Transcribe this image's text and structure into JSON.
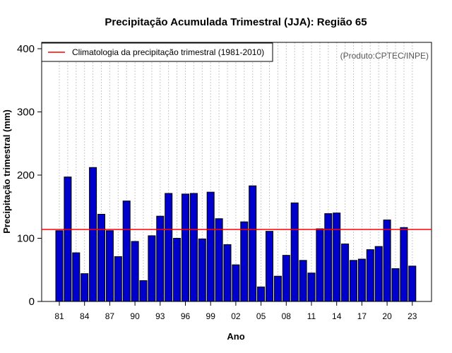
{
  "chart_data": {
    "type": "bar",
    "title": "Precipitação Acumulada Trimestral (JJA): Região 65",
    "xlabel": "Ano",
    "ylabel": "Precipitação trimestral (mm)",
    "ylim": [
      0,
      400
    ],
    "yticks": [
      0,
      100,
      200,
      300,
      400
    ],
    "grid": "vertical dotted",
    "bar_color": "#0000cc",
    "climatology": {
      "label": "Climatologia da precipitação trimestral (1981-2010)",
      "value": 114,
      "color": "#ff0000"
    },
    "credit": "(Produto:CPTEC/INPE)",
    "legend_position": "top-left",
    "tick_labels": [
      {
        "label": "81",
        "year": 1981
      },
      {
        "label": "84",
        "year": 1984
      },
      {
        "label": "87",
        "year": 1987
      },
      {
        "label": "90",
        "year": 1990
      },
      {
        "label": "93",
        "year": 1993
      },
      {
        "label": "96",
        "year": 1996
      },
      {
        "label": "99",
        "year": 1999
      },
      {
        "label": "02",
        "year": 2002
      },
      {
        "label": "05",
        "year": 2005
      },
      {
        "label": "08",
        "year": 2008
      },
      {
        "label": "11",
        "year": 2011
      },
      {
        "label": "14",
        "year": 2014
      },
      {
        "label": "17",
        "year": 2017
      },
      {
        "label": "20",
        "year": 2020
      },
      {
        "label": "23",
        "year": 2023
      }
    ],
    "years": [
      1981,
      1982,
      1983,
      1984,
      1985,
      1986,
      1987,
      1988,
      1989,
      1990,
      1991,
      1992,
      1993,
      1994,
      1995,
      1996,
      1997,
      1998,
      1999,
      2000,
      2001,
      2002,
      2003,
      2004,
      2005,
      2006,
      2007,
      2008,
      2009,
      2010,
      2011,
      2012,
      2013,
      2014,
      2015,
      2016,
      2017,
      2018,
      2019,
      2020,
      2021,
      2022,
      2023
    ],
    "values": [
      112,
      197,
      77,
      44,
      212,
      138,
      112,
      71,
      159,
      95,
      33,
      104,
      135,
      171,
      100,
      170,
      171,
      99,
      173,
      131,
      90,
      58,
      126,
      183,
      23,
      111,
      40,
      73,
      156,
      65,
      45,
      115,
      139,
      140,
      91,
      65,
      67,
      82,
      87,
      129,
      52,
      117,
      56
    ]
  }
}
